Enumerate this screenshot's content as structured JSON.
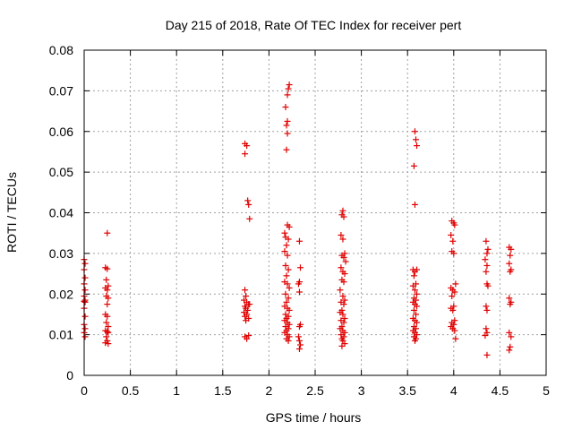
{
  "chart_data": {
    "type": "scatter",
    "title": "Day 215 of 2018, Rate Of TEC Index for receiver pert",
    "xlabel": "GPS time / hours",
    "ylabel": "ROTI / TECUs",
    "xlim": [
      0,
      5
    ],
    "ylim": [
      0,
      0.08
    ],
    "x_ticks": [
      0,
      0.5,
      1,
      1.5,
      2,
      2.5,
      3,
      3.5,
      4,
      4.5,
      5
    ],
    "x_tick_labels": [
      "0",
      "0.5",
      "1",
      "1.5",
      "2",
      "2.5",
      "3",
      "3.5",
      "4",
      "4.5",
      "5"
    ],
    "y_ticks": [
      0,
      0.01,
      0.02,
      0.03,
      0.04,
      0.05,
      0.06,
      0.07,
      0.08
    ],
    "y_tick_labels": [
      "0",
      "0.01",
      "0.02",
      "0.03",
      "0.04",
      "0.05",
      "0.06",
      "0.07",
      "0.08"
    ],
    "grid": true,
    "marker": "+",
    "marker_color": "#e00000",
    "series": [
      {
        "name": "ROTI",
        "points": [
          [
            0.0,
            0.0285
          ],
          [
            0.01,
            0.0275
          ],
          [
            0.0,
            0.026
          ],
          [
            0.01,
            0.024
          ],
          [
            0.0,
            0.0225
          ],
          [
            0.01,
            0.021
          ],
          [
            0.0,
            0.0195
          ],
          [
            0.01,
            0.0185
          ],
          [
            0.0,
            0.0182
          ],
          [
            0.01,
            0.018
          ],
          [
            0.0,
            0.0165
          ],
          [
            0.01,
            0.0145
          ],
          [
            0.0,
            0.0125
          ],
          [
            0.01,
            0.0115
          ],
          [
            0.0,
            0.0105
          ],
          [
            0.01,
            0.0095
          ],
          [
            0.25,
            0.035
          ],
          [
            0.23,
            0.0265
          ],
          [
            0.25,
            0.0262
          ],
          [
            0.24,
            0.0235
          ],
          [
            0.26,
            0.022
          ],
          [
            0.23,
            0.0215
          ],
          [
            0.25,
            0.021
          ],
          [
            0.24,
            0.0195
          ],
          [
            0.26,
            0.019
          ],
          [
            0.25,
            0.0175
          ],
          [
            0.23,
            0.015
          ],
          [
            0.25,
            0.0145
          ],
          [
            0.24,
            0.013
          ],
          [
            0.26,
            0.012
          ],
          [
            0.23,
            0.011
          ],
          [
            0.25,
            0.0108
          ],
          [
            0.26,
            0.0105
          ],
          [
            0.24,
            0.0095
          ],
          [
            0.25,
            0.0085
          ],
          [
            0.23,
            0.008
          ],
          [
            0.26,
            0.0078
          ],
          [
            1.74,
            0.057
          ],
          [
            1.76,
            0.0565
          ],
          [
            1.74,
            0.0545
          ],
          [
            1.77,
            0.043
          ],
          [
            1.78,
            0.042
          ],
          [
            1.79,
            0.0385
          ],
          [
            1.74,
            0.021
          ],
          [
            1.75,
            0.0195
          ],
          [
            1.73,
            0.0185
          ],
          [
            1.76,
            0.018
          ],
          [
            1.78,
            0.0175
          ],
          [
            1.74,
            0.017
          ],
          [
            1.75,
            0.0165
          ],
          [
            1.77,
            0.016
          ],
          [
            1.73,
            0.0155
          ],
          [
            1.76,
            0.015
          ],
          [
            1.74,
            0.0145
          ],
          [
            1.78,
            0.014
          ],
          [
            1.75,
            0.0135
          ],
          [
            1.79,
            0.0175
          ],
          [
            1.74,
            0.0095
          ],
          [
            1.76,
            0.009
          ],
          [
            1.78,
            0.0098
          ],
          [
            2.22,
            0.0715
          ],
          [
            2.21,
            0.0705
          ],
          [
            2.2,
            0.069
          ],
          [
            2.18,
            0.066
          ],
          [
            2.2,
            0.0625
          ],
          [
            2.19,
            0.0615
          ],
          [
            2.2,
            0.0595
          ],
          [
            2.19,
            0.0555
          ],
          [
            2.17,
            0.035
          ],
          [
            2.2,
            0.037
          ],
          [
            2.22,
            0.0365
          ],
          [
            2.18,
            0.034
          ],
          [
            2.21,
            0.0335
          ],
          [
            2.19,
            0.032
          ],
          [
            2.17,
            0.0305
          ],
          [
            2.2,
            0.0295
          ],
          [
            2.18,
            0.027
          ],
          [
            2.21,
            0.026
          ],
          [
            2.19,
            0.0245
          ],
          [
            2.17,
            0.023
          ],
          [
            2.2,
            0.0225
          ],
          [
            2.22,
            0.0215
          ],
          [
            2.18,
            0.02
          ],
          [
            2.21,
            0.019
          ],
          [
            2.19,
            0.018
          ],
          [
            2.17,
            0.017
          ],
          [
            2.2,
            0.0165
          ],
          [
            2.22,
            0.016
          ],
          [
            2.18,
            0.015
          ],
          [
            2.21,
            0.0145
          ],
          [
            2.19,
            0.014
          ],
          [
            2.17,
            0.0135
          ],
          [
            2.2,
            0.013
          ],
          [
            2.22,
            0.0125
          ],
          [
            2.18,
            0.012
          ],
          [
            2.21,
            0.0115
          ],
          [
            2.19,
            0.011
          ],
          [
            2.17,
            0.0105
          ],
          [
            2.2,
            0.01
          ],
          [
            2.22,
            0.0095
          ],
          [
            2.19,
            0.009
          ],
          [
            2.21,
            0.0085
          ],
          [
            2.33,
            0.033
          ],
          [
            2.34,
            0.0265
          ],
          [
            2.33,
            0.023
          ],
          [
            2.32,
            0.0225
          ],
          [
            2.33,
            0.0205
          ],
          [
            2.34,
            0.0125
          ],
          [
            2.33,
            0.012
          ],
          [
            2.32,
            0.0095
          ],
          [
            2.33,
            0.0085
          ],
          [
            2.34,
            0.0075
          ],
          [
            2.33,
            0.0065
          ],
          [
            2.8,
            0.0405
          ],
          [
            2.79,
            0.0395
          ],
          [
            2.81,
            0.039
          ],
          [
            2.78,
            0.0345
          ],
          [
            2.8,
            0.0335
          ],
          [
            2.82,
            0.03
          ],
          [
            2.79,
            0.0295
          ],
          [
            2.81,
            0.029
          ],
          [
            2.83,
            0.028
          ],
          [
            2.78,
            0.0265
          ],
          [
            2.8,
            0.0255
          ],
          [
            2.82,
            0.025
          ],
          [
            2.79,
            0.0235
          ],
          [
            2.81,
            0.023
          ],
          [
            2.77,
            0.021
          ],
          [
            2.8,
            0.0195
          ],
          [
            2.82,
            0.0185
          ],
          [
            2.78,
            0.018
          ],
          [
            2.81,
            0.0175
          ],
          [
            2.79,
            0.016
          ],
          [
            2.77,
            0.0155
          ],
          [
            2.8,
            0.015
          ],
          [
            2.82,
            0.014
          ],
          [
            2.78,
            0.0135
          ],
          [
            2.81,
            0.013
          ],
          [
            2.79,
            0.012
          ],
          [
            2.77,
            0.0115
          ],
          [
            2.8,
            0.011
          ],
          [
            2.82,
            0.0105
          ],
          [
            2.78,
            0.01
          ],
          [
            2.81,
            0.0095
          ],
          [
            2.79,
            0.009
          ],
          [
            2.8,
            0.0085
          ],
          [
            2.82,
            0.0078
          ],
          [
            2.79,
            0.0072
          ],
          [
            3.58,
            0.06
          ],
          [
            3.59,
            0.058
          ],
          [
            3.6,
            0.0565
          ],
          [
            3.57,
            0.0515
          ],
          [
            3.58,
            0.042
          ],
          [
            3.56,
            0.026
          ],
          [
            3.58,
            0.0255
          ],
          [
            3.6,
            0.026
          ],
          [
            3.57,
            0.0245
          ],
          [
            3.59,
            0.0225
          ],
          [
            3.56,
            0.022
          ],
          [
            3.58,
            0.021
          ],
          [
            3.6,
            0.02
          ],
          [
            3.57,
            0.019
          ],
          [
            3.59,
            0.0185
          ],
          [
            3.56,
            0.018
          ],
          [
            3.58,
            0.0175
          ],
          [
            3.6,
            0.017
          ],
          [
            3.57,
            0.016
          ],
          [
            3.59,
            0.015
          ],
          [
            3.56,
            0.014
          ],
          [
            3.58,
            0.0135
          ],
          [
            3.6,
            0.013
          ],
          [
            3.57,
            0.012
          ],
          [
            3.59,
            0.0115
          ],
          [
            3.56,
            0.011
          ],
          [
            3.58,
            0.0105
          ],
          [
            3.6,
            0.01
          ],
          [
            3.57,
            0.0095
          ],
          [
            3.59,
            0.009
          ],
          [
            3.58,
            0.0085
          ],
          [
            3.98,
            0.038
          ],
          [
            4.0,
            0.0375
          ],
          [
            4.01,
            0.037
          ],
          [
            3.97,
            0.0345
          ],
          [
            3.99,
            0.033
          ],
          [
            3.98,
            0.0305
          ],
          [
            4.0,
            0.03
          ],
          [
            3.97,
            0.0215
          ],
          [
            3.99,
            0.021
          ],
          [
            4.01,
            0.0205
          ],
          [
            4.02,
            0.0225
          ],
          [
            3.98,
            0.0195
          ],
          [
            4.0,
            0.017
          ],
          [
            3.97,
            0.0165
          ],
          [
            3.99,
            0.016
          ],
          [
            4.01,
            0.0135
          ],
          [
            3.98,
            0.013
          ],
          [
            4.0,
            0.0125
          ],
          [
            3.97,
            0.012
          ],
          [
            3.99,
            0.0115
          ],
          [
            4.01,
            0.011
          ],
          [
            4.02,
            0.009
          ],
          [
            4.35,
            0.033
          ],
          [
            4.37,
            0.031
          ],
          [
            4.36,
            0.03
          ],
          [
            4.34,
            0.0285
          ],
          [
            4.36,
            0.027
          ],
          [
            4.35,
            0.0255
          ],
          [
            4.36,
            0.0225
          ],
          [
            4.37,
            0.022
          ],
          [
            4.35,
            0.017
          ],
          [
            4.36,
            0.016
          ],
          [
            4.35,
            0.0115
          ],
          [
            4.36,
            0.0105
          ],
          [
            4.34,
            0.0098
          ],
          [
            4.36,
            0.005
          ],
          [
            4.6,
            0.0315
          ],
          [
            4.62,
            0.031
          ],
          [
            4.61,
            0.0295
          ],
          [
            4.6,
            0.0275
          ],
          [
            4.62,
            0.026
          ],
          [
            4.61,
            0.0255
          ],
          [
            4.6,
            0.019
          ],
          [
            4.62,
            0.018
          ],
          [
            4.61,
            0.0175
          ],
          [
            4.6,
            0.0105
          ],
          [
            4.62,
            0.0095
          ],
          [
            4.61,
            0.007
          ],
          [
            4.6,
            0.0062
          ]
        ]
      }
    ]
  }
}
